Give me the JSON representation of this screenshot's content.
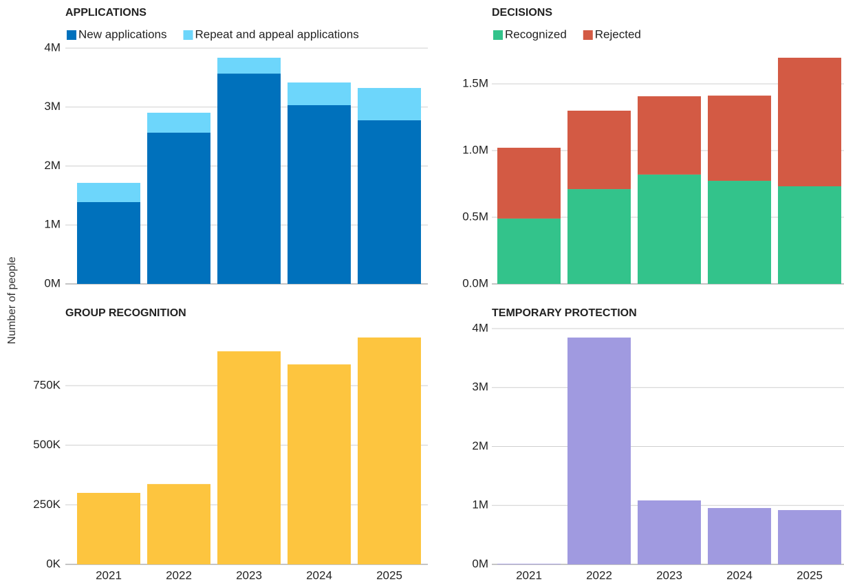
{
  "y_axis_label": "Number of people",
  "chart_data": [
    {
      "type": "bar",
      "title": "APPLICATIONS",
      "stacked": true,
      "legend": "top-left",
      "series": [
        {
          "name": "New applications",
          "color": "#0071bc",
          "values": [
            1388000,
            2566000,
            3568000,
            3032000,
            2776000
          ]
        },
        {
          "name": "Repeat and appeal applications",
          "color": "#6dd6fb",
          "values": [
            326000,
            338000,
            269000,
            385000,
            548000
          ]
        }
      ],
      "ylim": [
        0,
        4000000
      ],
      "yticks": [
        {
          "value": 0,
          "label": "0M"
        },
        {
          "value": 1000000,
          "label": "1M"
        },
        {
          "value": 2000000,
          "label": "2M"
        },
        {
          "value": 3000000,
          "label": "3M"
        },
        {
          "value": 4000000,
          "label": "4M"
        }
      ],
      "grid": true
    },
    {
      "type": "bar",
      "title": "DECISIONS",
      "stacked": true,
      "legend": "top-left",
      "series": [
        {
          "name": "Recognized",
          "color": "#33c38b",
          "values": [
            490000,
            711000,
            820000,
            773000,
            732000
          ]
        },
        {
          "name": "Rejected",
          "color": "#d35a44",
          "values": [
            531000,
            588000,
            587000,
            639000,
            964000
          ]
        }
      ],
      "ylim": [
        0,
        1700000
      ],
      "yticks": [
        {
          "value": 0,
          "label": "0.0M"
        },
        {
          "value": 500000,
          "label": "0.5M"
        },
        {
          "value": 1000000,
          "label": "1.0M"
        },
        {
          "value": 1500000,
          "label": "1.5M"
        }
      ],
      "grid": true
    },
    {
      "type": "bar",
      "title": "GROUP RECOGNITION",
      "categories": [
        "2021",
        "2022",
        "2023",
        "2024",
        "2025"
      ],
      "values": [
        300000,
        337000,
        894000,
        839000,
        952000
      ],
      "color": "#fdc53f",
      "ylim": [
        0,
        1000000
      ],
      "yticks": [
        {
          "value": 0,
          "label": "0K"
        },
        {
          "value": 250000,
          "label": "250K"
        },
        {
          "value": 500000,
          "label": "500K"
        },
        {
          "value": 750000,
          "label": "750K"
        }
      ],
      "grid": true
    },
    {
      "type": "bar",
      "title": "TEMPORARY PROTECTION",
      "categories": [
        "2021",
        "2022",
        "2023",
        "2024",
        "2025"
      ],
      "values": [
        10000,
        3848000,
        1085000,
        956000,
        921000
      ],
      "color": "#a09ae0",
      "ylim": [
        0,
        4000000
      ],
      "yticks": [
        {
          "value": 0,
          "label": "0M"
        },
        {
          "value": 1000000,
          "label": "1M"
        },
        {
          "value": 2000000,
          "label": "2M"
        },
        {
          "value": 3000000,
          "label": "3M"
        },
        {
          "value": 4000000,
          "label": "4M"
        }
      ],
      "grid": true
    }
  ]
}
